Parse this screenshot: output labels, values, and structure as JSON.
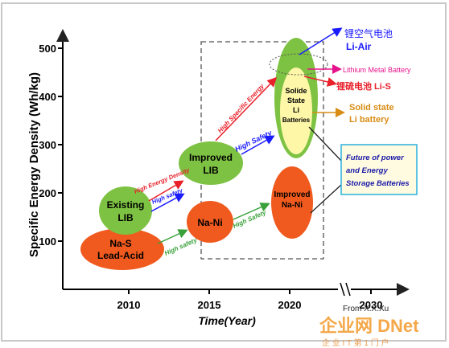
{
  "y_axis": {
    "label": "Specific Energy Density (Wh/kg)",
    "ticks": [
      "500",
      "400",
      "300",
      "200",
      "100"
    ]
  },
  "x_axis": {
    "label": "Time(Year)",
    "ticks": [
      "2010",
      "2015",
      "2020",
      "2030"
    ],
    "note": "From X.X.Xu"
  },
  "ellipses": {
    "existing_lib": [
      "Existing",
      "LIB"
    ],
    "na_s": [
      "Na-S",
      "Lead-Acid"
    ],
    "improved_lib": [
      "Improved",
      "LIB"
    ],
    "na_ni": "Na-Ni",
    "improved_na_ni": [
      "Improved",
      "Na-Ni"
    ],
    "solid_state": [
      "Solide",
      "State",
      "Li",
      "Batteries"
    ]
  },
  "arrows": {
    "high_energy_density": "High Energy Density",
    "high_safety_1": "High safety",
    "high_safety_2": "High Safety",
    "high_specific_energy": "High Specific Energy",
    "high_safety_3": "High safety",
    "high_safety_4": "High Safety"
  },
  "callouts": {
    "li_air_cn": "锂空气电池",
    "li_air": "Li-Air",
    "lithium_metal": "Lithium Metal Battery",
    "li_s": "锂硫电池 Li-S",
    "solid_state_1": "Solid state",
    "solid_state_2": "Li battery"
  },
  "future_box": [
    "Future of power",
    "and Energy",
    "Storage Batteries"
  ],
  "watermark": "企业网 DNet",
  "watermark_sub": "企 业 I T 第 1 门 户",
  "colors": {
    "green": "#7dc242",
    "orange": "#f05a1e",
    "yellow": "#fef7a8",
    "blue": "#1a1aff",
    "red": "#e8202a",
    "magenta": "#e6148c",
    "gold": "#d98c14",
    "future_box_border": "#2ab0e0",
    "future_box_fill": "#fffbe0",
    "future_text": "#1a1aa8"
  }
}
